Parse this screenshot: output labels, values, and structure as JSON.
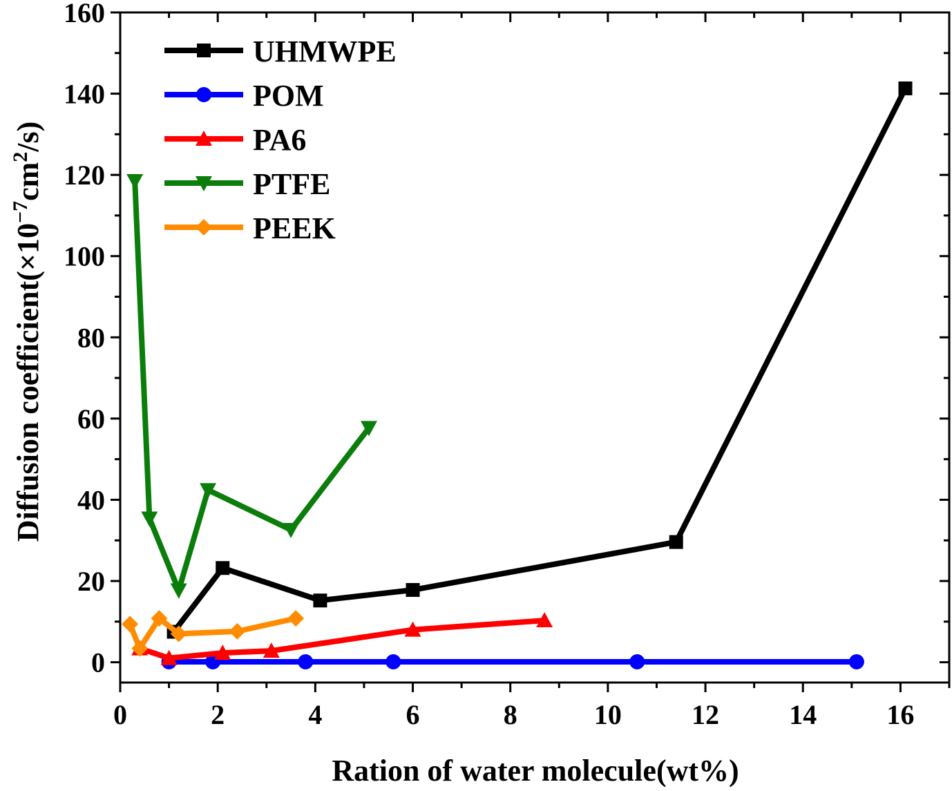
{
  "chart_data": {
    "type": "line",
    "title": "",
    "xlabel": "Ration of water molecule(wt%)",
    "ylabel": {
      "prefix": "Diffusion coefficient(×10",
      "exp1": "−7",
      "mid": "cm",
      "exp2": "2",
      "suffix": "/s)"
    },
    "xlim": [
      0,
      17
    ],
    "ylim": [
      -5,
      160
    ],
    "xticks": [
      0,
      2,
      4,
      6,
      8,
      10,
      12,
      14,
      16
    ],
    "yticks": [
      0,
      20,
      40,
      60,
      80,
      100,
      120,
      140,
      160
    ],
    "legend_position": "top-left",
    "series": [
      {
        "name": "UHMWPE",
        "color": "#000000",
        "marker": "square",
        "points": [
          [
            1.1,
            7.5
          ],
          [
            2.1,
            23.2
          ],
          [
            4.1,
            15.2
          ],
          [
            6.0,
            17.8
          ],
          [
            11.4,
            29.6
          ],
          [
            16.1,
            141.3
          ]
        ]
      },
      {
        "name": "POM",
        "color": "#0000ff",
        "marker": "circle",
        "points": [
          [
            1.0,
            0.1
          ],
          [
            1.9,
            0.1
          ],
          [
            3.8,
            0.1
          ],
          [
            5.6,
            0.1
          ],
          [
            10.6,
            0.1
          ],
          [
            15.1,
            0.1
          ]
        ]
      },
      {
        "name": "PA6",
        "color": "#ff0000",
        "marker": "triangle-up",
        "points": [
          [
            0.4,
            3.4
          ],
          [
            1.0,
            1.0
          ],
          [
            2.1,
            2.3
          ],
          [
            3.1,
            2.8
          ],
          [
            6.0,
            8.0
          ],
          [
            8.7,
            10.3
          ]
        ]
      },
      {
        "name": "PTFE",
        "color": "#0a7d0a",
        "marker": "triangle-down",
        "points": [
          [
            0.3,
            118.5
          ],
          [
            0.6,
            35.4
          ],
          [
            1.2,
            17.7
          ],
          [
            1.8,
            42.4
          ],
          [
            3.5,
            32.6
          ],
          [
            5.1,
            57.7
          ]
        ]
      },
      {
        "name": "PEEK",
        "color": "#ff8c00",
        "marker": "diamond",
        "points": [
          [
            0.2,
            9.4
          ],
          [
            0.4,
            3.4
          ],
          [
            0.8,
            10.8
          ],
          [
            1.2,
            7.0
          ],
          [
            2.4,
            7.6
          ],
          [
            3.6,
            10.8
          ]
        ]
      }
    ]
  }
}
